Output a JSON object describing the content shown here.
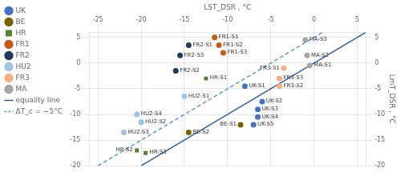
{
  "chart_data": {
    "type": "scatter",
    "xlabel": "LST_DSR , °C",
    "y2label": "LmT_DSR , °C",
    "xlim": [
      -26,
      6
    ],
    "xticks": [
      -25,
      -20,
      -15,
      -10,
      -5,
      0,
      5
    ],
    "ylim": [
      -20,
      6
    ],
    "yticks": [
      -20,
      -15,
      -10,
      -5,
      0,
      5
    ],
    "y2lim": [
      -20,
      6
    ],
    "y2ticks": [
      -20,
      -15,
      -10,
      -5,
      0,
      5
    ],
    "grid": true,
    "legend": "left",
    "series": [
      {
        "name": "equality line",
        "type": "line",
        "color": "#2b5fa5",
        "line_style": "solid",
        "x": [
          -20,
          6
        ],
        "values": [
          -20,
          6
        ]
      },
      {
        "name": "ΔT_c = −5°C",
        "type": "line",
        "color": "#5b9bd5",
        "line_style": "dashed",
        "x": [
          -25,
          1
        ],
        "values": [
          -20,
          6
        ]
      },
      {
        "name": "UK",
        "type": "scatter",
        "color": "#4472c4",
        "marker": "circle",
        "x": [
          -8.0,
          -6.0,
          -6.5,
          -6.5,
          -7.0
        ],
        "values": [
          -4.5,
          -7.5,
          -9.0,
          -10.5,
          -12.0
        ],
        "labels": [
          "UK-S1",
          "UK-S2",
          "UK-S3",
          "UK-S4",
          "UK-S5"
        ]
      },
      {
        "name": "BE",
        "type": "scatter",
        "color": "#7f6000",
        "marker": "circle",
        "x": [
          -8.5,
          -14.5
        ],
        "values": [
          -12.0,
          -13.5
        ],
        "labels": [
          "BE-S1",
          "BE-S2"
        ]
      },
      {
        "name": "HR",
        "type": "scatter",
        "color": "#548235",
        "marker": "square",
        "x": [
          -12.5,
          -20.5,
          -19.5
        ],
        "values": [
          -3.0,
          -17.0,
          -17.5
        ],
        "labels": [
          "HR-S1",
          "HR-S2",
          "HR-S3"
        ]
      },
      {
        "name": "FR1",
        "type": "scatter",
        "color": "#c55a11",
        "marker": "circle",
        "x": [
          -11.5,
          -11.0,
          -10.5
        ],
        "values": [
          5.0,
          3.5,
          2.0
        ],
        "labels": [
          "FR1-S1",
          "FR1-S2",
          "FR1-S3"
        ]
      },
      {
        "name": "FR2",
        "type": "scatter",
        "color": "#1f3864",
        "marker": "circle",
        "x": [
          -14.5,
          -16.0,
          -15.5
        ],
        "values": [
          3.5,
          -1.5,
          1.5
        ],
        "labels": [
          "FR2-S1",
          "FR2-S2",
          "FR2-S3"
        ]
      },
      {
        "name": "HU2",
        "type": "scatter",
        "color": "#9dc3e6",
        "marker": "circle",
        "x": [
          -15.0,
          -20.0,
          -22.0,
          -20.5
        ],
        "values": [
          -6.5,
          -11.5,
          -13.5,
          -10.0
        ],
        "labels": [
          "HU2-S1",
          "HU2-S2",
          "HU2-S3",
          "HU2-S4"
        ]
      },
      {
        "name": "FR3",
        "type": "scatter",
        "color": "#f4b183",
        "marker": "circle",
        "x": [
          -3.5,
          -4.0,
          -4.0
        ],
        "values": [
          -1.0,
          -4.5,
          -3.0
        ],
        "labels": [
          "FR3-S1",
          "FR3-S2",
          "FR3-S3"
        ]
      },
      {
        "name": "MA",
        "type": "scatter",
        "color": "#a6a6a6",
        "marker": "circle",
        "x": [
          -0.5,
          -0.8,
          -1.0
        ],
        "values": [
          -0.5,
          1.5,
          4.5
        ],
        "labels": [
          "MA-S1",
          "MA-S2",
          "MA-S3"
        ]
      }
    ]
  }
}
